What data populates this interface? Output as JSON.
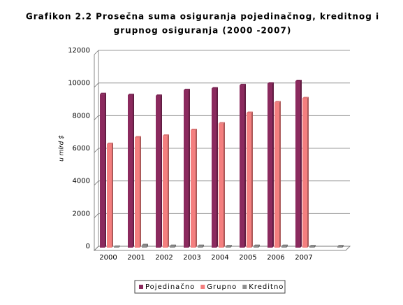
{
  "chart_data": {
    "type": "bar",
    "title": [
      "Grafikon 2.2  Prosečna suma osiguranja pojedinačnog, kreditnog i",
      "grupnog osiguranja (2000 -2007)"
    ],
    "y_label": "u mlrd $",
    "categories": [
      "2000",
      "2001",
      "2002",
      "2003",
      "2004",
      "2005",
      "2006",
      "2007",
      null
    ],
    "series": [
      {
        "name": "Pojedinačno",
        "color": "#8b2a5e",
        "values": [
          9400,
          9350,
          9300,
          9650,
          9750,
          9950,
          10050,
          10200,
          null
        ]
      },
      {
        "name": "Grupno",
        "color": "#f47f7f",
        "values": [
          6350,
          6750,
          6850,
          7200,
          7600,
          8250,
          8900,
          9150,
          null
        ]
      },
      {
        "name": "Kreditno",
        "color": "#8e8e8e",
        "values": [
          50,
          150,
          100,
          100,
          80,
          100,
          100,
          80,
          80
        ]
      }
    ],
    "ylim": [
      0,
      12000
    ],
    "yticks": [
      0,
      2000,
      4000,
      6000,
      8000,
      10000,
      12000
    ],
    "grid": true,
    "legend": "bottom"
  }
}
